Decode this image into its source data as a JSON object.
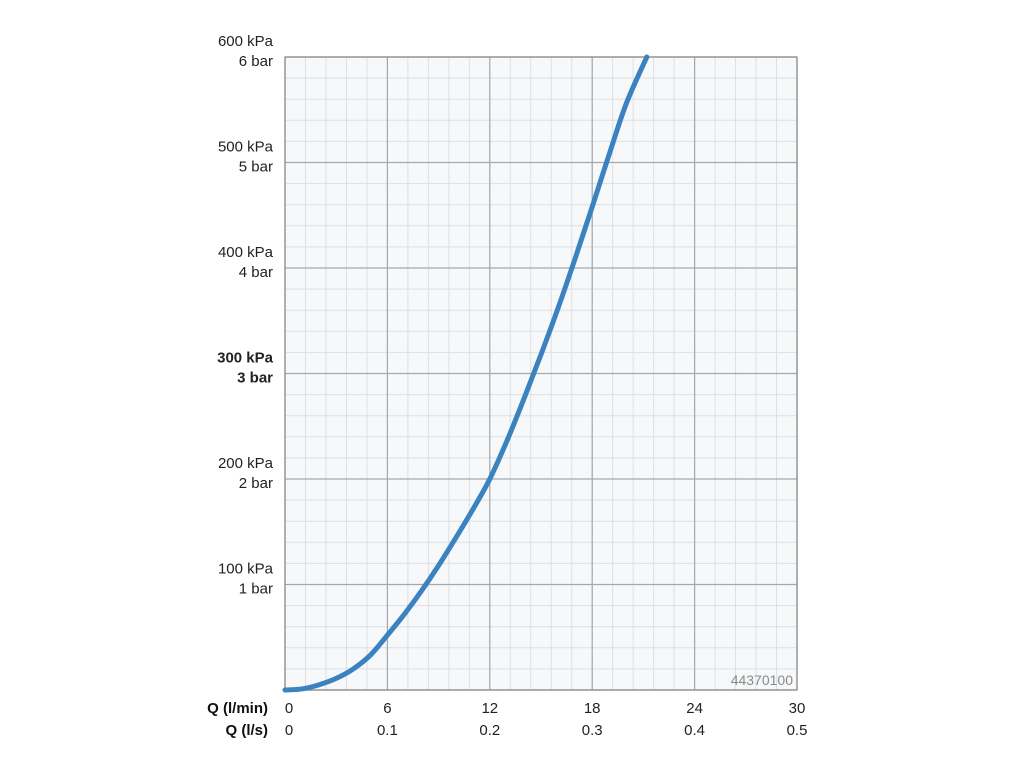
{
  "chart_data": {
    "type": "line",
    "title": "",
    "product_code": "44370100",
    "x_axes": [
      {
        "name": "Q (l/min)",
        "ticks": [
          "0",
          "6",
          "12",
          "18",
          "24",
          "30"
        ]
      },
      {
        "name": "Q (l/s)",
        "ticks": [
          "0",
          "0.1",
          "0.2",
          "0.3",
          "0.4",
          "0.5"
        ]
      }
    ],
    "y_ticks": [
      {
        "value": 100,
        "kpa": "100 kPa",
        "bar": "1 bar",
        "bold": false
      },
      {
        "value": 200,
        "kpa": "200 kPa",
        "bar": "2 bar",
        "bold": false
      },
      {
        "value": 300,
        "kpa": "300 kPa",
        "bar": "3 bar",
        "bold": true
      },
      {
        "value": 400,
        "kpa": "400 kPa",
        "bar": "4 bar",
        "bold": false
      },
      {
        "value": 500,
        "kpa": "500 kPa",
        "bar": "5 bar",
        "bold": false
      },
      {
        "value": 600,
        "kpa": "600 kPa",
        "bar": "6 bar",
        "bold": false
      }
    ],
    "xlim": [
      0,
      30
    ],
    "ylim": [
      0,
      600
    ],
    "grid": {
      "major_x_step": 6,
      "minor_x_step": 1.2,
      "major_y_step": 100,
      "minor_y_step": 20
    },
    "series": [
      {
        "color": "#3a82c0",
        "x": [
          0,
          1,
          2,
          3,
          4,
          5,
          6,
          7,
          8,
          9,
          10,
          11,
          12,
          13,
          14,
          15,
          16,
          17,
          18,
          19,
          20,
          21.2
        ],
        "y": [
          0,
          1,
          5,
          11,
          20,
          33,
          52,
          72,
          94,
          118,
          144,
          171,
          200,
          236,
          276,
          318,
          362,
          409,
          458,
          508,
          556,
          600
        ]
      }
    ]
  }
}
